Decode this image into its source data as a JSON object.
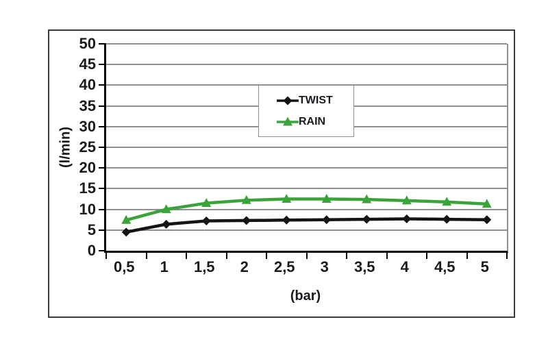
{
  "chart_data": {
    "type": "line",
    "title": "",
    "xlabel": "(bar)",
    "ylabel": "(l/min)",
    "x": [
      0.5,
      1,
      1.5,
      2,
      2.5,
      3,
      3.5,
      4,
      4.5,
      5
    ],
    "x_tick_labels": [
      "0,5",
      "1",
      "1,5",
      "2",
      "2,5",
      "3",
      "3,5",
      "4",
      "4,5",
      "5"
    ],
    "y_ticks": [
      0,
      5,
      10,
      15,
      20,
      25,
      30,
      35,
      40,
      45,
      50
    ],
    "ylim": [
      0,
      50
    ],
    "grid": "horizontal",
    "legend_position": "inside-upper-middle",
    "series": [
      {
        "name": "TWIST",
        "color": "#141414",
        "marker": "diamond",
        "values": [
          4.5,
          6.4,
          7.2,
          7.3,
          7.4,
          7.5,
          7.6,
          7.7,
          7.6,
          7.5
        ]
      },
      {
        "name": "RAIN",
        "color": "#3aa43a",
        "marker": "triangle-up",
        "values": [
          7.4,
          10.0,
          11.5,
          12.2,
          12.5,
          12.5,
          12.4,
          12.1,
          11.8,
          11.3
        ]
      }
    ]
  },
  "colors": {
    "text": "#1a1a20",
    "gridline": "#8f8f8f",
    "axis": "#000000",
    "frame_border": "#3a3a3a",
    "legend_border": "#8f8f8f",
    "background": "#ffffff"
  }
}
